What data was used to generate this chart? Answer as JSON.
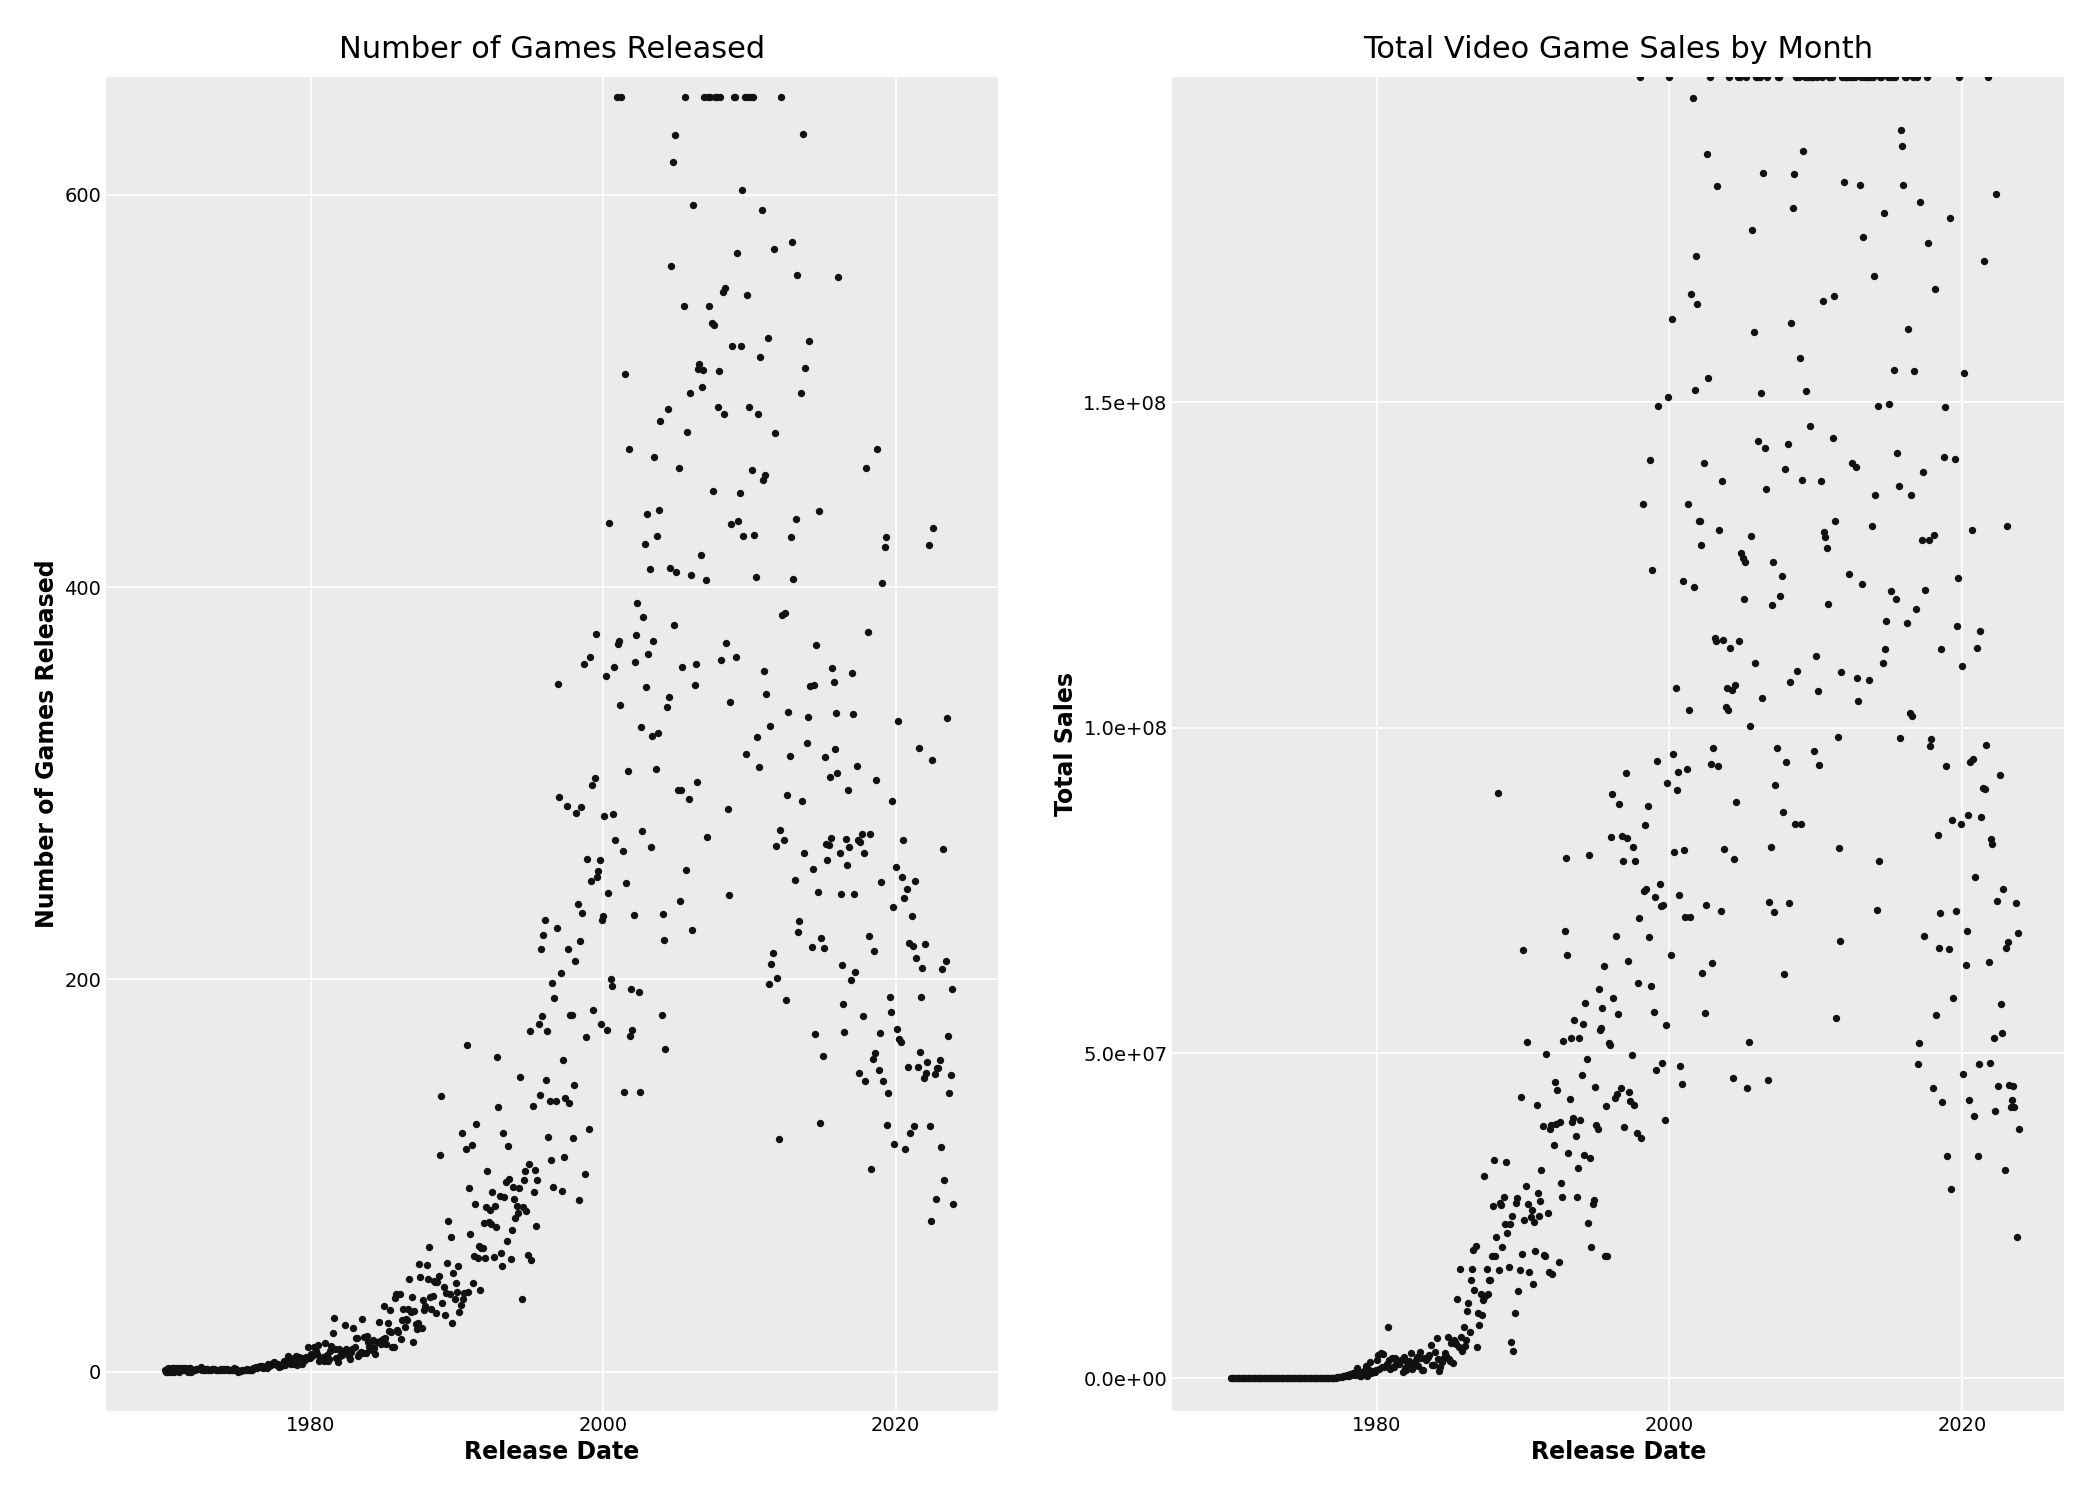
{
  "title1": "Number of Games Released",
  "title2": "Total Video Game Sales by Month",
  "xlabel": "Release Date",
  "ylabel1": "Number of Games Released",
  "ylabel2": "Total Sales",
  "bg_color": "#EBEBEB",
  "point_color": "#111111",
  "point_size": 28,
  "grid_color": "white",
  "title_fontsize": 22,
  "label_fontsize": 17,
  "tick_fontsize": 14,
  "xlim": [
    1966,
    2027
  ],
  "ylim1": [
    -20,
    660
  ],
  "ylim2": [
    -5000000,
    200000000
  ],
  "xticks": [
    1980,
    2000,
    2020
  ],
  "yticks1": [
    0,
    200,
    400,
    600
  ],
  "yticks2": [
    0.0,
    50000000,
    100000000,
    150000000
  ]
}
